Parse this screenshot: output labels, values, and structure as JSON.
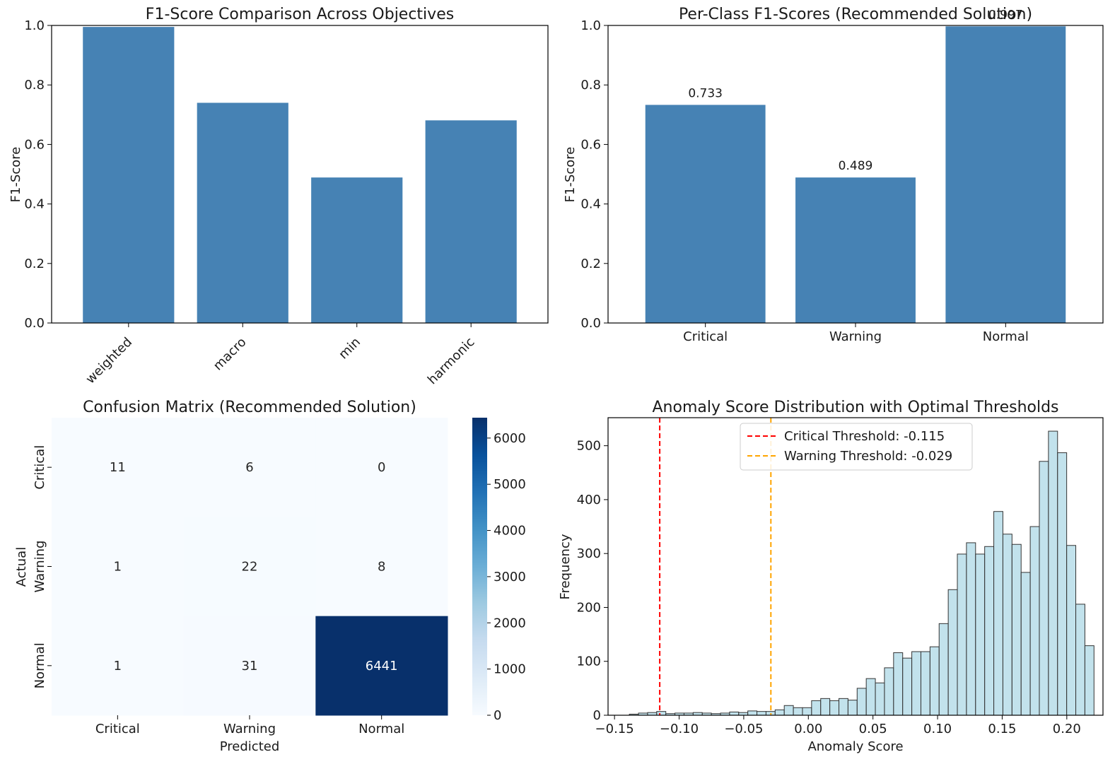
{
  "chart_data": [
    {
      "type": "bar",
      "title": "F1-Score Comparison Across Objectives",
      "xlabel": "",
      "ylabel": "F1-Score",
      "ylim": [
        0,
        1
      ],
      "yticks": [
        "0.0",
        "0.2",
        "0.4",
        "0.6",
        "0.8",
        "1.0"
      ],
      "categories": [
        "weighted",
        "macro",
        "min",
        "harmonic"
      ],
      "values": [
        0.995,
        0.74,
        0.489,
        0.681
      ],
      "color": "#4682b4"
    },
    {
      "type": "bar",
      "title": "Per-Class F1-Scores (Recommended Solution)",
      "xlabel": "",
      "ylabel": "F1-Score",
      "ylim": [
        0,
        1
      ],
      "yticks": [
        "0.0",
        "0.2",
        "0.4",
        "0.6",
        "0.8",
        "1.0"
      ],
      "categories": [
        "Critical",
        "Warning",
        "Normal"
      ],
      "values": [
        0.733,
        0.489,
        0.997
      ],
      "data_labels": [
        "0.733",
        "0.489",
        "0.997"
      ],
      "color": "#4682b4"
    },
    {
      "type": "heatmap",
      "title": "Confusion Matrix (Recommended Solution)",
      "xlabel": "Predicted",
      "ylabel": "Actual",
      "x_categories": [
        "Critical",
        "Warning",
        "Normal"
      ],
      "y_categories": [
        "Critical",
        "Warning",
        "Normal"
      ],
      "matrix": [
        [
          11,
          6,
          0
        ],
        [
          1,
          22,
          8
        ],
        [
          1,
          31,
          6441
        ]
      ],
      "colorbar_ticks": [
        "0",
        "1000",
        "2000",
        "3000",
        "4000",
        "5000",
        "6000"
      ],
      "colorbar_max": 6441,
      "colormap": "Blues"
    },
    {
      "type": "histogram",
      "title": "Anomaly Score Distribution with Optimal Thresholds",
      "xlabel": "Anomaly Score",
      "ylabel": "Frequency",
      "xlim": [
        -0.155,
        0.228
      ],
      "ylim": [
        0,
        552
      ],
      "xticks": [
        "−0.15",
        "−0.10",
        "−0.05",
        "0.00",
        "0.05",
        "0.10",
        "0.15",
        "0.20"
      ],
      "yticks": [
        "0",
        "100",
        "200",
        "300",
        "400",
        "500"
      ],
      "bin_start": -0.1385,
      "bin_width": 0.00705,
      "counts": [
        2,
        4,
        5,
        7,
        3,
        4,
        4,
        5,
        4,
        3,
        4,
        6,
        5,
        8,
        7,
        7,
        10,
        18,
        14,
        14,
        27,
        31,
        27,
        31,
        28,
        50,
        68,
        60,
        88,
        116,
        106,
        118,
        118,
        127,
        170,
        233,
        299,
        320,
        299,
        313,
        378,
        336,
        317,
        265,
        350,
        471,
        527,
        487,
        315,
        206,
        129
      ],
      "bar_color": "#add8e6",
      "edge_color": "#333333",
      "thresholds": [
        {
          "label": "Critical Threshold: -0.115",
          "value": -0.115,
          "color": "#ff0000"
        },
        {
          "label": "Warning Threshold: -0.029",
          "value": -0.029,
          "color": "#ffa500"
        }
      ]
    }
  ]
}
